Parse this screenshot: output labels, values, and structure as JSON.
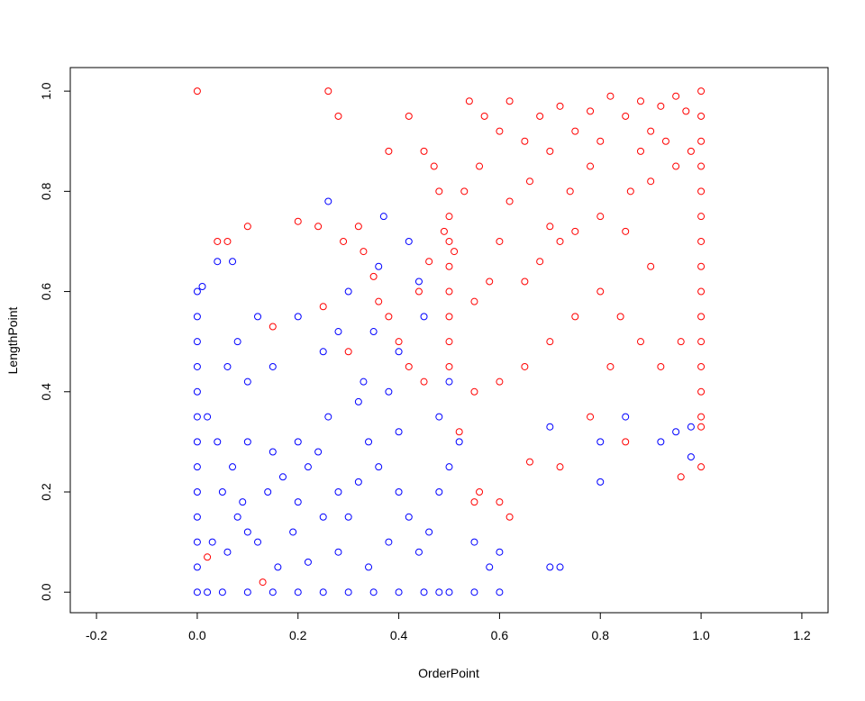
{
  "chart_data": {
    "type": "scatter",
    "xlabel": "OrderPoint",
    "ylabel": "LengthPoint",
    "xlim": [
      -0.252,
      1.252
    ],
    "ylim": [
      -0.041,
      1.047
    ],
    "xticks": [
      -0.2,
      {
        "value": 0,
        "label": "0.0"
      },
      0.2,
      0.4,
      0.6,
      0.8,
      {
        "value": 1,
        "label": "1.0"
      },
      1.2
    ],
    "yticks": [
      {
        "value": 0,
        "label": "0.0"
      },
      0.2,
      0.4,
      0.6,
      0.8,
      {
        "value": 1,
        "label": "1.0"
      }
    ],
    "series": [
      {
        "color": "#ff0000",
        "x": [
          0.0,
          0.26,
          0.28,
          0.42,
          0.38,
          0.45,
          0.04,
          0.06,
          0.1,
          0.2,
          0.24,
          0.32,
          0.29,
          0.33,
          0.5,
          0.5,
          0.5,
          0.5,
          0.5,
          0.5,
          0.5,
          0.49,
          0.51,
          0.54,
          0.57,
          0.6,
          0.62,
          0.65,
          0.68,
          0.7,
          0.72,
          0.75,
          0.78,
          0.8,
          0.82,
          0.85,
          0.88,
          0.9,
          0.92,
          0.95,
          0.97,
          1.0,
          1.0,
          1.0,
          1.0,
          1.0,
          1.0,
          1.0,
          1.0,
          1.0,
          1.0,
          1.0,
          1.0,
          1.0,
          1.0,
          1.0,
          1.0,
          0.98,
          0.95,
          0.93,
          0.9,
          0.88,
          0.86,
          0.85,
          0.8,
          0.75,
          0.72,
          0.7,
          0.68,
          0.65,
          0.6,
          0.58,
          0.55,
          0.53,
          0.56,
          0.62,
          0.66,
          0.74,
          0.78,
          0.84,
          0.88,
          0.92,
          0.96,
          0.9,
          0.8,
          0.75,
          0.7,
          0.65,
          0.6,
          0.55,
          0.45,
          0.42,
          0.4,
          0.38,
          0.44,
          0.46,
          0.48,
          0.47,
          0.52,
          0.56,
          0.55,
          0.6,
          0.62,
          0.66,
          0.72,
          0.78,
          0.82,
          0.85,
          0.96,
          0.02,
          0.13,
          0.3,
          0.36,
          0.35,
          0.25,
          0.15
        ],
        "y": [
          1.0,
          1.0,
          0.95,
          0.95,
          0.88,
          0.88,
          0.7,
          0.7,
          0.73,
          0.74,
          0.73,
          0.73,
          0.7,
          0.68,
          0.75,
          0.7,
          0.65,
          0.6,
          0.55,
          0.5,
          0.45,
          0.72,
          0.68,
          0.98,
          0.95,
          0.92,
          0.98,
          0.9,
          0.95,
          0.88,
          0.97,
          0.92,
          0.96,
          0.9,
          0.99,
          0.95,
          0.98,
          0.92,
          0.97,
          0.99,
          0.96,
          1.0,
          0.95,
          0.9,
          0.85,
          0.8,
          0.75,
          0.7,
          0.65,
          0.6,
          0.55,
          0.5,
          0.45,
          0.4,
          0.35,
          0.33,
          0.25,
          0.88,
          0.85,
          0.9,
          0.82,
          0.88,
          0.8,
          0.72,
          0.75,
          0.72,
          0.7,
          0.73,
          0.66,
          0.62,
          0.7,
          0.62,
          0.58,
          0.8,
          0.85,
          0.78,
          0.82,
          0.8,
          0.85,
          0.55,
          0.5,
          0.45,
          0.5,
          0.65,
          0.6,
          0.55,
          0.5,
          0.45,
          0.42,
          0.4,
          0.42,
          0.45,
          0.5,
          0.55,
          0.6,
          0.66,
          0.8,
          0.85,
          0.32,
          0.2,
          0.18,
          0.18,
          0.15,
          0.26,
          0.25,
          0.35,
          0.45,
          0.3,
          0.23,
          0.07,
          0.02,
          0.48,
          0.58,
          0.63,
          0.57,
          0.53
        ]
      },
      {
        "color": "#0000ff",
        "x": [
          0.0,
          0.01,
          0.04,
          0.07,
          0.26,
          0.37,
          0.0,
          0.0,
          0.0,
          0.0,
          0.0,
          0.0,
          0.0,
          0.0,
          0.0,
          0.0,
          0.0,
          0.0,
          0.02,
          0.05,
          0.1,
          0.15,
          0.2,
          0.25,
          0.3,
          0.35,
          0.4,
          0.45,
          0.48,
          0.5,
          0.55,
          0.6,
          0.02,
          0.04,
          0.05,
          0.07,
          0.08,
          0.09,
          0.1,
          0.12,
          0.14,
          0.15,
          0.17,
          0.19,
          0.2,
          0.22,
          0.24,
          0.26,
          0.28,
          0.3,
          0.32,
          0.33,
          0.34,
          0.36,
          0.38,
          0.4,
          0.42,
          0.44,
          0.46,
          0.48,
          0.5,
          0.52,
          0.55,
          0.58,
          0.6,
          0.7,
          0.72,
          0.8,
          0.8,
          0.85,
          0.7,
          0.92,
          0.95,
          0.98,
          0.98,
          0.06,
          0.08,
          0.12,
          0.1,
          0.15,
          0.2,
          0.25,
          0.3,
          0.28,
          0.35,
          0.4,
          0.45,
          0.44,
          0.42,
          0.36,
          0.5,
          0.48,
          0.06,
          0.1,
          0.16,
          0.22,
          0.28,
          0.34,
          0.03,
          0.2,
          0.25,
          0.32,
          0.4,
          0.38
        ],
        "y": [
          0.6,
          0.61,
          0.66,
          0.66,
          0.78,
          0.75,
          0.55,
          0.5,
          0.45,
          0.4,
          0.35,
          0.3,
          0.25,
          0.2,
          0.15,
          0.1,
          0.05,
          0.0,
          0.0,
          0.0,
          0.0,
          0.0,
          0.0,
          0.0,
          0.0,
          0.0,
          0.0,
          0.0,
          0.0,
          0.0,
          0.0,
          0.0,
          0.35,
          0.3,
          0.2,
          0.25,
          0.15,
          0.18,
          0.3,
          0.1,
          0.2,
          0.28,
          0.23,
          0.12,
          0.3,
          0.25,
          0.28,
          0.35,
          0.2,
          0.15,
          0.38,
          0.42,
          0.3,
          0.25,
          0.1,
          0.2,
          0.15,
          0.08,
          0.12,
          0.2,
          0.25,
          0.3,
          0.1,
          0.05,
          0.08,
          0.05,
          0.05,
          0.22,
          0.3,
          0.35,
          0.33,
          0.3,
          0.32,
          0.33,
          0.27,
          0.45,
          0.5,
          0.55,
          0.42,
          0.45,
          0.55,
          0.48,
          0.6,
          0.52,
          0.52,
          0.48,
          0.55,
          0.62,
          0.7,
          0.65,
          0.42,
          0.35,
          0.08,
          0.12,
          0.05,
          0.06,
          0.08,
          0.05,
          0.1,
          0.18,
          0.15,
          0.22,
          0.32,
          0.4
        ]
      }
    ]
  }
}
